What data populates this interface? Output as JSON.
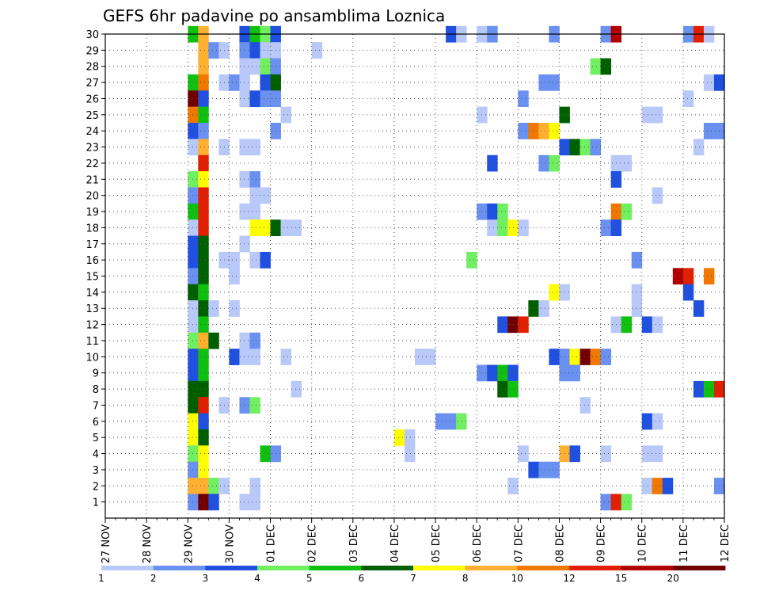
{
  "chart_data": {
    "type": "heatmap",
    "title": "GEFS 6hr padavine po ansamblima Loznica",
    "xlabel": "",
    "ylabel": "",
    "x_ticks": [
      "27 NOV",
      "28 NOV",
      "29 NOV",
      "30 NOV",
      "01 DEC",
      "02 DEC",
      "03 DEC",
      "04 DEC",
      "05 DEC",
      "06 DEC",
      "07 DEC",
      "08 DEC",
      "09 DEC",
      "10 DEC",
      "11 DEC",
      "12 DEC"
    ],
    "xlim_steps": [
      0,
      60
    ],
    "steps_per_day": 4,
    "members": [
      0,
      30
    ],
    "y_ticks": [
      "1",
      "2",
      "3",
      "4",
      "5",
      "6",
      "7",
      "8",
      "9",
      "10",
      "11",
      "12",
      "13",
      "14",
      "15",
      "16",
      "17",
      "18",
      "19",
      "20",
      "21",
      "22",
      "23",
      "24",
      "25",
      "26",
      "27",
      "28",
      "29",
      "30"
    ],
    "grid": true,
    "legend_position": "bottom",
    "levels": [
      "1",
      "2",
      "3",
      "4",
      "5",
      "6",
      "7",
      "8",
      "10",
      "12",
      "15",
      "20"
    ],
    "colors": [
      "#b8c8f8",
      "#6a90f0",
      "#1f50e0",
      "#70f060",
      "#10c010",
      "#006000",
      "#ffff00",
      "#ffb030",
      "#f07800",
      "#e02000",
      "#b00000",
      "#700000"
    ],
    "cells_note": "each row: member, then [step, level class 0-12]",
    "cells": [
      [
        30,
        [
          [
            8,
            5
          ],
          [
            9,
            8
          ],
          [
            13,
            3
          ],
          [
            14,
            5
          ],
          [
            15,
            4
          ],
          [
            16,
            3
          ],
          [
            33,
            3
          ],
          [
            34,
            1
          ],
          [
            36,
            1
          ],
          [
            37,
            2
          ],
          [
            43,
            2
          ],
          [
            48,
            2
          ],
          [
            49,
            11
          ],
          [
            56,
            2
          ],
          [
            57,
            10
          ],
          [
            58,
            1
          ]
        ]
      ],
      [
        29,
        [
          [
            8,
            0
          ],
          [
            9,
            8
          ],
          [
            10,
            2
          ],
          [
            11,
            1
          ],
          [
            13,
            2
          ],
          [
            14,
            3
          ],
          [
            15,
            1
          ],
          [
            16,
            1
          ],
          [
            20,
            1
          ]
        ]
      ],
      [
        28,
        [
          [
            8,
            0
          ],
          [
            9,
            8
          ],
          [
            13,
            1
          ],
          [
            14,
            1
          ],
          [
            15,
            4
          ],
          [
            16,
            2
          ],
          [
            47,
            4
          ],
          [
            48,
            6
          ]
        ]
      ],
      [
        27,
        [
          [
            8,
            5
          ],
          [
            9,
            9
          ],
          [
            11,
            1
          ],
          [
            12,
            2
          ],
          [
            13,
            1
          ],
          [
            15,
            3
          ],
          [
            16,
            6
          ],
          [
            42,
            2
          ],
          [
            43,
            2
          ],
          [
            58,
            1
          ],
          [
            59,
            3
          ]
        ]
      ],
      [
        26,
        [
          [
            8,
            12
          ],
          [
            9,
            3
          ],
          [
            13,
            1
          ],
          [
            14,
            3
          ],
          [
            15,
            2
          ],
          [
            16,
            2
          ],
          [
            40,
            2
          ],
          [
            56,
            1
          ]
        ]
      ],
      [
        25,
        [
          [
            8,
            9
          ],
          [
            9,
            5
          ],
          [
            17,
            1
          ],
          [
            36,
            1
          ],
          [
            44,
            6
          ],
          [
            52,
            1
          ],
          [
            53,
            1
          ]
        ]
      ],
      [
        24,
        [
          [
            8,
            3
          ],
          [
            9,
            2
          ],
          [
            16,
            2
          ],
          [
            40,
            2
          ],
          [
            41,
            9
          ],
          [
            42,
            8
          ],
          [
            43,
            7
          ],
          [
            58,
            2
          ],
          [
            59,
            2
          ]
        ]
      ],
      [
        23,
        [
          [
            8,
            1
          ],
          [
            9,
            8
          ],
          [
            11,
            1
          ],
          [
            13,
            1
          ],
          [
            14,
            1
          ],
          [
            44,
            3
          ],
          [
            45,
            6
          ],
          [
            46,
            4
          ],
          [
            47,
            2
          ],
          [
            57,
            1
          ]
        ]
      ],
      [
        22,
        [
          [
            9,
            10
          ],
          [
            37,
            3
          ],
          [
            42,
            2
          ],
          [
            43,
            4
          ],
          [
            49,
            1
          ],
          [
            50,
            1
          ]
        ]
      ],
      [
        21,
        [
          [
            8,
            4
          ],
          [
            9,
            7
          ],
          [
            13,
            1
          ],
          [
            14,
            2
          ],
          [
            49,
            3
          ]
        ]
      ],
      [
        20,
        [
          [
            8,
            2
          ],
          [
            9,
            10
          ],
          [
            14,
            1
          ],
          [
            15,
            1
          ],
          [
            53,
            1
          ]
        ]
      ],
      [
        19,
        [
          [
            8,
            5
          ],
          [
            9,
            10
          ],
          [
            13,
            1
          ],
          [
            14,
            1
          ],
          [
            36,
            2
          ],
          [
            37,
            3
          ],
          [
            38,
            4
          ],
          [
            49,
            9
          ],
          [
            50,
            4
          ]
        ]
      ],
      [
        18,
        [
          [
            8,
            1
          ],
          [
            9,
            10
          ],
          [
            14,
            7
          ],
          [
            15,
            7
          ],
          [
            16,
            6
          ],
          [
            17,
            1
          ],
          [
            18,
            1
          ],
          [
            37,
            1
          ],
          [
            38,
            4
          ],
          [
            39,
            7
          ],
          [
            40,
            1
          ],
          [
            48,
            2
          ],
          [
            49,
            3
          ]
        ]
      ],
      [
        17,
        [
          [
            8,
            3
          ],
          [
            9,
            6
          ],
          [
            13,
            1
          ]
        ]
      ],
      [
        16,
        [
          [
            8,
            3
          ],
          [
            9,
            6
          ],
          [
            11,
            1
          ],
          [
            12,
            1
          ],
          [
            14,
            1
          ],
          [
            15,
            3
          ],
          [
            35,
            4
          ],
          [
            51,
            2
          ]
        ]
      ],
      [
        15,
        [
          [
            8,
            2
          ],
          [
            9,
            6
          ],
          [
            12,
            1
          ],
          [
            55,
            11
          ],
          [
            56,
            10
          ],
          [
            58,
            9
          ]
        ]
      ],
      [
        14,
        [
          [
            8,
            6
          ],
          [
            9,
            5
          ],
          [
            43,
            7
          ],
          [
            44,
            1
          ],
          [
            51,
            1
          ],
          [
            56,
            3
          ]
        ]
      ],
      [
        13,
        [
          [
            8,
            1
          ],
          [
            9,
            6
          ],
          [
            10,
            1
          ],
          [
            12,
            1
          ],
          [
            41,
            6
          ],
          [
            42,
            1
          ],
          [
            51,
            1
          ],
          [
            57,
            3
          ]
        ]
      ],
      [
        12,
        [
          [
            8,
            1
          ],
          [
            9,
            5
          ],
          [
            38,
            3
          ],
          [
            39,
            12
          ],
          [
            40,
            10
          ],
          [
            49,
            1
          ],
          [
            50,
            5
          ],
          [
            52,
            3
          ],
          [
            53,
            1
          ],
          [
            60,
            6
          ]
        ]
      ],
      [
        11,
        [
          [
            8,
            4
          ],
          [
            9,
            8
          ],
          [
            10,
            6
          ],
          [
            13,
            1
          ],
          [
            14,
            2
          ]
        ]
      ],
      [
        10,
        [
          [
            8,
            3
          ],
          [
            9,
            5
          ],
          [
            12,
            3
          ],
          [
            13,
            1
          ],
          [
            14,
            1
          ],
          [
            17,
            1
          ],
          [
            30,
            1
          ],
          [
            31,
            1
          ],
          [
            43,
            3
          ],
          [
            44,
            2
          ],
          [
            45,
            7
          ],
          [
            46,
            12
          ],
          [
            47,
            9
          ],
          [
            48,
            2
          ]
        ]
      ],
      [
        9,
        [
          [
            8,
            3
          ],
          [
            9,
            5
          ],
          [
            36,
            2
          ],
          [
            37,
            3
          ],
          [
            38,
            5
          ],
          [
            39,
            3
          ],
          [
            44,
            2
          ],
          [
            45,
            2
          ]
        ]
      ],
      [
        8,
        [
          [
            8,
            6
          ],
          [
            9,
            6
          ],
          [
            18,
            1
          ],
          [
            38,
            6
          ],
          [
            39,
            5
          ],
          [
            57,
            3
          ],
          [
            58,
            5
          ],
          [
            59,
            10
          ]
        ]
      ],
      [
        7,
        [
          [
            8,
            6
          ],
          [
            9,
            10
          ],
          [
            11,
            1
          ],
          [
            13,
            2
          ],
          [
            14,
            4
          ],
          [
            46,
            1
          ]
        ]
      ],
      [
        6,
        [
          [
            8,
            7
          ],
          [
            9,
            3
          ],
          [
            32,
            2
          ],
          [
            33,
            2
          ],
          [
            34,
            4
          ],
          [
            52,
            3
          ],
          [
            53,
            1
          ]
        ]
      ],
      [
        5,
        [
          [
            8,
            7
          ],
          [
            9,
            6
          ],
          [
            28,
            7
          ],
          [
            29,
            1
          ]
        ]
      ],
      [
        4,
        [
          [
            8,
            4
          ],
          [
            9,
            7
          ],
          [
            15,
            5
          ],
          [
            16,
            2
          ],
          [
            29,
            1
          ],
          [
            40,
            1
          ],
          [
            44,
            8
          ],
          [
            45,
            3
          ],
          [
            48,
            1
          ],
          [
            52,
            1
          ],
          [
            53,
            1
          ]
        ]
      ],
      [
        3,
        [
          [
            8,
            2
          ],
          [
            9,
            7
          ],
          [
            41,
            3
          ],
          [
            42,
            2
          ],
          [
            43,
            2
          ]
        ]
      ],
      [
        2,
        [
          [
            8,
            8
          ],
          [
            9,
            8
          ],
          [
            10,
            4
          ],
          [
            11,
            1
          ],
          [
            14,
            1
          ],
          [
            39,
            1
          ],
          [
            52,
            1
          ],
          [
            53,
            9
          ],
          [
            54,
            3
          ],
          [
            59,
            2
          ]
        ]
      ],
      [
        1,
        [
          [
            8,
            2
          ],
          [
            9,
            12
          ],
          [
            10,
            3
          ],
          [
            13,
            1
          ],
          [
            14,
            1
          ],
          [
            48,
            2
          ],
          [
            49,
            10
          ],
          [
            50,
            4
          ]
        ]
      ]
    ]
  }
}
